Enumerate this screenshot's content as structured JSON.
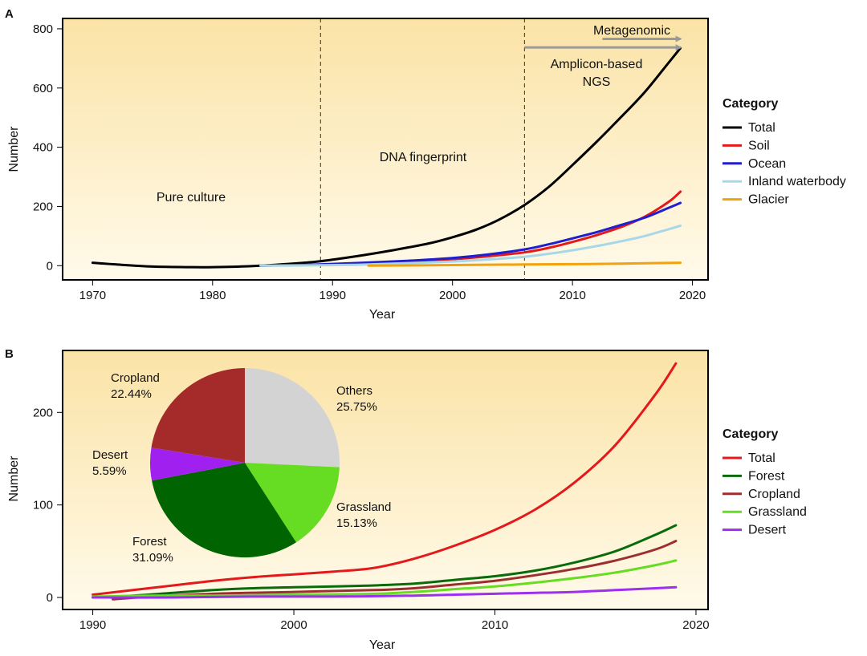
{
  "chart_data": [
    {
      "panel": "A",
      "type": "line",
      "xlabel": "Year",
      "ylabel": "Number",
      "xlim": [
        1967.5,
        2021.3
      ],
      "ylim": [
        -48,
        835
      ],
      "xticks": [
        1970,
        1980,
        1990,
        2000,
        2010,
        2020
      ],
      "yticks": [
        0,
        200,
        400,
        600,
        800
      ],
      "legend_title": "Category",
      "legend_position": "right",
      "vlines": [
        1989,
        2006
      ],
      "region_labels": [
        "Pure culture",
        "DNA fingerprint",
        "Amplicon-based",
        "NGS",
        "Metagenomic"
      ],
      "arrows": [
        {
          "name": "metagenomic",
          "x_from": 2012.5,
          "x_to": 2019,
          "y": 766
        },
        {
          "name": "amplicon",
          "x_from": 2006,
          "x_to": 2019,
          "y": 737
        }
      ],
      "series": [
        {
          "name": "Total",
          "color": "#000000",
          "points": [
            [
              1970,
              10
            ],
            [
              1972,
              4
            ],
            [
              1975,
              -3
            ],
            [
              1978,
              -5
            ],
            [
              1980,
              -5
            ],
            [
              1983,
              -2
            ],
            [
              1986,
              5
            ],
            [
              1989,
              15
            ],
            [
              1992,
              32
            ],
            [
              1995,
              52
            ],
            [
              1998,
              75
            ],
            [
              2000,
              96
            ],
            [
              2002,
              122
            ],
            [
              2004,
              158
            ],
            [
              2006,
              205
            ],
            [
              2008,
              265
            ],
            [
              2010,
              340
            ],
            [
              2012,
              418
            ],
            [
              2014,
              500
            ],
            [
              2016,
              585
            ],
            [
              2018,
              685
            ],
            [
              2019,
              735
            ]
          ]
        },
        {
          "name": "Soil",
          "color": "#e3191b",
          "points": [
            [
              1984,
              0
            ],
            [
              1988,
              2
            ],
            [
              1992,
              6
            ],
            [
              1996,
              13
            ],
            [
              2000,
              22
            ],
            [
              2003,
              32
            ],
            [
              2006,
              45
            ],
            [
              2008,
              60
            ],
            [
              2010,
              80
            ],
            [
              2012,
              103
            ],
            [
              2014,
              130
            ],
            [
              2016,
              165
            ],
            [
              2018,
              215
            ],
            [
              2019,
              250
            ]
          ]
        },
        {
          "name": "Ocean",
          "color": "#1f1fcf",
          "points": [
            [
              1984,
              0
            ],
            [
              1988,
              3
            ],
            [
              1992,
              9
            ],
            [
              1996,
              16
            ],
            [
              2000,
              26
            ],
            [
              2003,
              38
            ],
            [
              2006,
              55
            ],
            [
              2008,
              72
            ],
            [
              2010,
              92
            ],
            [
              2012,
              113
            ],
            [
              2014,
              137
            ],
            [
              2016,
              162
            ],
            [
              2018,
              195
            ],
            [
              2019,
              212
            ]
          ]
        },
        {
          "name": "Inland waterbody",
          "color": "#a8d8e8",
          "points": [
            [
              1984,
              0
            ],
            [
              1988,
              1
            ],
            [
              1992,
              3
            ],
            [
              1996,
              8
            ],
            [
              2000,
              14
            ],
            [
              2003,
              21
            ],
            [
              2006,
              30
            ],
            [
              2008,
              40
            ],
            [
              2010,
              52
            ],
            [
              2012,
              66
            ],
            [
              2014,
              82
            ],
            [
              2016,
              100
            ],
            [
              2018,
              123
            ],
            [
              2019,
              135
            ]
          ]
        },
        {
          "name": "Glacier",
          "color": "#f2a20f",
          "points": [
            [
              1993,
              0
            ],
            [
              2000,
              2
            ],
            [
              2006,
              4
            ],
            [
              2010,
              5
            ],
            [
              2014,
              7
            ],
            [
              2019,
              10
            ]
          ]
        }
      ]
    },
    {
      "panel": "B",
      "type": "line",
      "xlabel": "Year",
      "ylabel": "Number",
      "xlim": [
        1988.5,
        2020.6
      ],
      "ylim": [
        -13,
        267
      ],
      "xticks": [
        1990,
        2000,
        2010,
        2020
      ],
      "yticks": [
        0,
        100,
        200
      ],
      "legend_title": "Category",
      "legend_position": "right",
      "series": [
        {
          "name": "Total",
          "color": "#e3191b",
          "points": [
            [
              1990,
              3
            ],
            [
              1992,
              8
            ],
            [
              1994,
              13
            ],
            [
              1996,
              18
            ],
            [
              1998,
              22
            ],
            [
              2000,
              25
            ],
            [
              2002,
              28
            ],
            [
              2004,
              32
            ],
            [
              2006,
              42
            ],
            [
              2008,
              56
            ],
            [
              2010,
              73
            ],
            [
              2012,
              95
            ],
            [
              2014,
              125
            ],
            [
              2016,
              165
            ],
            [
              2018,
              220
            ],
            [
              2019,
              253
            ]
          ]
        },
        {
          "name": "Forest",
          "color": "#0a6b0a",
          "points": [
            [
              1990,
              0
            ],
            [
              1992,
              2
            ],
            [
              1994,
              5
            ],
            [
              1996,
              8
            ],
            [
              1998,
              10
            ],
            [
              2000,
              11
            ],
            [
              2002,
              12
            ],
            [
              2004,
              13
            ],
            [
              2006,
              15
            ],
            [
              2008,
              19
            ],
            [
              2010,
              23
            ],
            [
              2012,
              29
            ],
            [
              2014,
              38
            ],
            [
              2016,
              50
            ],
            [
              2018,
              68
            ],
            [
              2019,
              78
            ]
          ]
        },
        {
          "name": "Cropland",
          "color": "#9b2f2f",
          "points": [
            [
              1991,
              -2
            ],
            [
              1993,
              1
            ],
            [
              1996,
              4
            ],
            [
              2000,
              6
            ],
            [
              2004,
              8
            ],
            [
              2006,
              10
            ],
            [
              2008,
              14
            ],
            [
              2010,
              18
            ],
            [
              2012,
              24
            ],
            [
              2014,
              31
            ],
            [
              2016,
              40
            ],
            [
              2018,
              52
            ],
            [
              2019,
              61
            ]
          ]
        },
        {
          "name": "Grassland",
          "color": "#66dd22",
          "points": [
            [
              1990,
              1
            ],
            [
              1993,
              2
            ],
            [
              1996,
              2
            ],
            [
              2000,
              3
            ],
            [
              2004,
              4
            ],
            [
              2006,
              6
            ],
            [
              2008,
              9
            ],
            [
              2010,
              12
            ],
            [
              2012,
              16
            ],
            [
              2014,
              21
            ],
            [
              2016,
              27
            ],
            [
              2018,
              35
            ],
            [
              2019,
              40
            ]
          ]
        },
        {
          "name": "Desert",
          "color": "#9b30ee",
          "points": [
            [
              1990,
              0
            ],
            [
              1994,
              0
            ],
            [
              1998,
              1
            ],
            [
              2002,
              1
            ],
            [
              2006,
              2
            ],
            [
              2008,
              3
            ],
            [
              2010,
              4
            ],
            [
              2012,
              5
            ],
            [
              2014,
              6
            ],
            [
              2016,
              8
            ],
            [
              2018,
              10
            ],
            [
              2019,
              11
            ]
          ]
        }
      ]
    },
    {
      "panel": "B-inset",
      "type": "pie",
      "slices": [
        {
          "label": "Others",
          "value": 25.75,
          "pct": "25.75%",
          "color": "#d3d3d3"
        },
        {
          "label": "Grassland",
          "value": 15.13,
          "pct": "15.13%",
          "color": "#66dd22"
        },
        {
          "label": "Forest",
          "value": 31.09,
          "pct": "31.09%",
          "color": "#006400"
        },
        {
          "label": "Desert",
          "value": 5.59,
          "pct": "5.59%",
          "color": "#a020f0"
        },
        {
          "label": "Cropland",
          "value": 22.44,
          "pct": "22.44%",
          "color": "#a52a2a"
        }
      ]
    }
  ]
}
